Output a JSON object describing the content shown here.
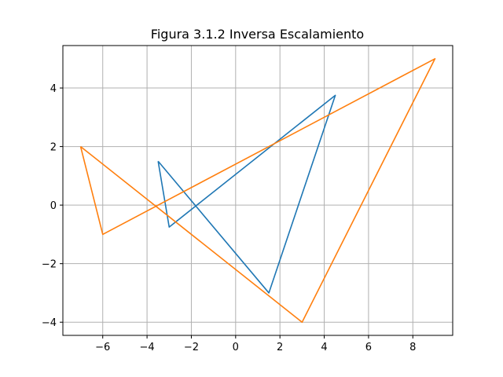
{
  "chart_data": {
    "type": "line",
    "title": "Figura 3.1.2 Inversa Escalamiento",
    "xlabel": "",
    "ylabel": "",
    "xlim": [
      -7.8,
      9.8
    ],
    "ylim": [
      -4.45,
      5.45
    ],
    "grid": true,
    "legend": "none",
    "x_ticks": [
      -6,
      -4,
      -2,
      0,
      2,
      4,
      6,
      8
    ],
    "x_tick_labels": [
      "−6",
      "−4",
      "−2",
      "0",
      "2",
      "4",
      "6",
      "8"
    ],
    "y_ticks": [
      -4,
      -2,
      0,
      2,
      4
    ],
    "y_tick_labels": [
      "−4",
      "−2",
      "0",
      "2",
      "4"
    ],
    "series": [
      {
        "color": "#1f77b4",
        "x": [
          -3.5,
          -3.0,
          4.5,
          1.5,
          -3.5
        ],
        "y": [
          1.5,
          -0.75,
          3.75,
          -3.0,
          1.5
        ]
      },
      {
        "color": "#ff7f0e",
        "x": [
          -7.0,
          -6.0,
          9.0,
          3.0,
          -7.0
        ],
        "y": [
          2.0,
          -1.0,
          5.0,
          -4.0,
          2.0
        ]
      }
    ]
  },
  "colors": {
    "grid": "#b0b0b0",
    "axes": "#000000",
    "background": "#ffffff"
  }
}
